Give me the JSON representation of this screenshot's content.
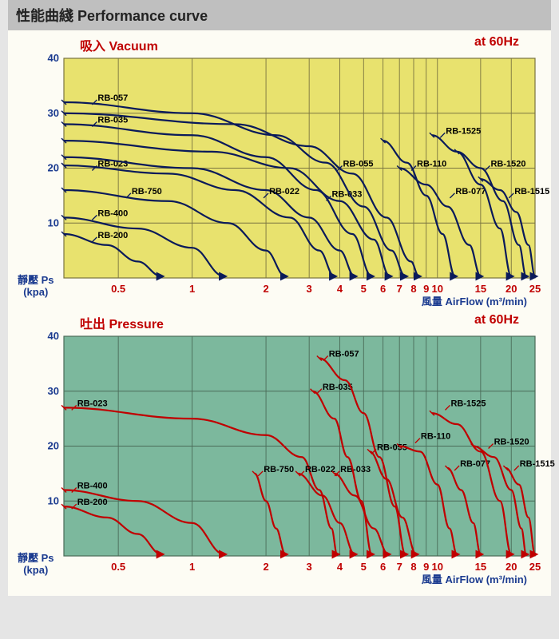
{
  "header": "性能曲綫 Performance curve",
  "chart_vacuum": {
    "title_left": "吸入 Vacuum",
    "title_right": "at 60Hz",
    "background_color": "#e8e26e",
    "grid_color": "#7a7440",
    "curve_color": "#0a1a5a",
    "curve_width": 2.2,
    "y_axis": {
      "min": 0,
      "max": 40,
      "ticks": [
        10,
        20,
        30,
        40
      ]
    },
    "x_axis": {
      "scale": "log",
      "min": 0.3,
      "max": 25,
      "ticks": [
        0.5,
        1,
        2,
        3,
        4,
        5,
        6,
        7,
        8,
        9,
        10,
        15,
        20,
        25
      ]
    },
    "xlabel": "風量 AirFlow (m³/min)",
    "ylabel_top": "靜壓 Ps",
    "ylabel_bottom": "(kpa)",
    "curves": [
      {
        "label": "RB-200",
        "label_x": 0.4,
        "label_y": 7,
        "points": [
          [
            0.3,
            8
          ],
          [
            0.45,
            6
          ],
          [
            0.6,
            3
          ],
          [
            0.75,
            0.3
          ]
        ]
      },
      {
        "label": "RB-400",
        "label_x": 0.4,
        "label_y": 11,
        "points": [
          [
            0.3,
            11
          ],
          [
            0.6,
            9
          ],
          [
            1.0,
            5.5
          ],
          [
            1.35,
            0.3
          ]
        ]
      },
      {
        "label": "RB-750",
        "label_x": 0.55,
        "label_y": 15,
        "points": [
          [
            0.3,
            16
          ],
          [
            0.8,
            14
          ],
          [
            1.4,
            10
          ],
          [
            2.0,
            5
          ],
          [
            2.4,
            0.3
          ]
        ]
      },
      {
        "label": "RB-023",
        "label_x": 0.4,
        "label_y": 20,
        "points": [
          [
            0.3,
            20.5
          ],
          [
            0.8,
            19
          ],
          [
            1.5,
            16
          ],
          [
            2.5,
            11
          ],
          [
            3.3,
            5
          ],
          [
            3.8,
            0.3
          ]
        ]
      },
      {
        "label": "RB-022",
        "label_x": 2.0,
        "label_y": 15,
        "points": [
          [
            0.3,
            22
          ],
          [
            1.0,
            20
          ],
          [
            2.0,
            16
          ],
          [
            3.0,
            11
          ],
          [
            4.0,
            5
          ],
          [
            4.6,
            0.3
          ]
        ]
      },
      {
        "label": "RB-035",
        "label_x": 0.4,
        "label_y": 28,
        "points": [
          [
            0.3,
            28
          ],
          [
            1.0,
            26
          ],
          [
            2.0,
            22
          ],
          [
            3.2,
            16
          ],
          [
            4.5,
            8
          ],
          [
            5.4,
            0.3
          ]
        ]
      },
      {
        "label": "RB-033",
        "label_x": 3.6,
        "label_y": 14.5,
        "points": [
          [
            0.3,
            25
          ],
          [
            1.2,
            23
          ],
          [
            2.5,
            20
          ],
          [
            4.0,
            14
          ],
          [
            5.5,
            7
          ],
          [
            6.4,
            0.3
          ]
        ]
      },
      {
        "label": "RB-057",
        "label_x": 0.4,
        "label_y": 32,
        "points": [
          [
            0.3,
            32
          ],
          [
            1.0,
            30
          ],
          [
            2.2,
            26
          ],
          [
            3.5,
            21
          ],
          [
            5.0,
            13
          ],
          [
            6.5,
            5
          ],
          [
            7.4,
            0.3
          ]
        ]
      },
      {
        "label": "RB-055",
        "label_x": 4.0,
        "label_y": 20,
        "points": [
          [
            0.3,
            30
          ],
          [
            1.5,
            28
          ],
          [
            3.0,
            24
          ],
          [
            4.5,
            19
          ],
          [
            6.2,
            11
          ],
          [
            7.8,
            3
          ],
          [
            8.4,
            0.3
          ]
        ]
      },
      {
        "label": "RB-110",
        "label_x": 8.0,
        "label_y": 20,
        "points": [
          [
            6.0,
            25
          ],
          [
            7.5,
            21
          ],
          [
            9.0,
            15
          ],
          [
            10.5,
            8
          ],
          [
            11.8,
            0.3
          ]
        ]
      },
      {
        "label": "RB-077",
        "label_x": 11.5,
        "label_y": 15,
        "points": [
          [
            7.0,
            20
          ],
          [
            9.0,
            17
          ],
          [
            11.0,
            13
          ],
          [
            13.5,
            6
          ],
          [
            15.0,
            0.3
          ]
        ]
      },
      {
        "label": "RB-1525",
        "label_x": 10.5,
        "label_y": 26,
        "points": [
          [
            9.5,
            26
          ],
          [
            12.0,
            23
          ],
          [
            15.0,
            17
          ],
          [
            18.0,
            9
          ],
          [
            20.0,
            0.3
          ]
        ]
      },
      {
        "label": "RB-1520",
        "label_x": 16.0,
        "label_y": 20,
        "points": [
          [
            12.0,
            23
          ],
          [
            15.0,
            20
          ],
          [
            18.5,
            14
          ],
          [
            21.5,
            6
          ],
          [
            23.0,
            0.3
          ]
        ]
      },
      {
        "label": "RB-1515",
        "label_x": 20.0,
        "label_y": 15,
        "points": [
          [
            15.0,
            18
          ],
          [
            18.0,
            16
          ],
          [
            21.0,
            12
          ],
          [
            23.5,
            6
          ],
          [
            25.0,
            0.3
          ]
        ]
      }
    ]
  },
  "chart_pressure": {
    "title_left": "吐出 Pressure",
    "title_right": "at 60Hz",
    "background_color": "#7cb89d",
    "grid_color": "#4a6b58",
    "curve_color": "#c00000",
    "curve_width": 2.2,
    "y_axis": {
      "min": 0,
      "max": 40,
      "ticks": [
        10,
        20,
        30,
        40
      ]
    },
    "x_axis": {
      "scale": "log",
      "min": 0.3,
      "max": 25,
      "ticks": [
        0.5,
        1,
        2,
        3,
        4,
        5,
        6,
        7,
        8,
        9,
        10,
        15,
        20,
        25
      ]
    },
    "xlabel": "風量 AirFlow (m³/min)",
    "ylabel_top": "靜壓 Ps",
    "ylabel_bottom": "(kpa)",
    "curves": [
      {
        "label": "RB-200",
        "label_x": 0.33,
        "label_y": 9,
        "points": [
          [
            0.3,
            9
          ],
          [
            0.45,
            7
          ],
          [
            0.6,
            4
          ],
          [
            0.75,
            0.3
          ]
        ]
      },
      {
        "label": "RB-400",
        "label_x": 0.33,
        "label_y": 12,
        "points": [
          [
            0.3,
            12
          ],
          [
            0.6,
            10
          ],
          [
            1.0,
            6
          ],
          [
            1.35,
            0.3
          ]
        ]
      },
      {
        "label": "RB-750",
        "label_x": 1.9,
        "label_y": 15,
        "points": [
          [
            1.8,
            15
          ],
          [
            2.0,
            10
          ],
          [
            2.2,
            5
          ],
          [
            2.4,
            0.3
          ]
        ]
      },
      {
        "label": "RB-023",
        "label_x": 0.33,
        "label_y": 27,
        "points": [
          [
            0.3,
            27
          ],
          [
            1.0,
            25
          ],
          [
            2.0,
            22
          ],
          [
            2.8,
            18
          ],
          [
            3.3,
            12
          ],
          [
            3.7,
            5
          ],
          [
            3.9,
            0.3
          ]
        ]
      },
      {
        "label": "RB-022",
        "label_x": 2.8,
        "label_y": 15,
        "points": [
          [
            2.7,
            15
          ],
          [
            3.4,
            11
          ],
          [
            4.0,
            6
          ],
          [
            4.6,
            0.3
          ]
        ]
      },
      {
        "label": "RB-033",
        "label_x": 3.9,
        "label_y": 15,
        "points": [
          [
            3.8,
            15
          ],
          [
            4.6,
            11
          ],
          [
            5.5,
            5
          ],
          [
            6.3,
            0.3
          ]
        ]
      },
      {
        "label": "RB-035",
        "label_x": 3.3,
        "label_y": 30,
        "points": [
          [
            3.1,
            30
          ],
          [
            3.8,
            25
          ],
          [
            4.3,
            18
          ],
          [
            4.9,
            10
          ],
          [
            5.4,
            0.3
          ]
        ]
      },
      {
        "label": "RB-055",
        "label_x": 5.5,
        "label_y": 19,
        "points": [
          [
            5.3,
            19
          ],
          [
            6.2,
            14
          ],
          [
            7.2,
            7
          ],
          [
            8.2,
            0.3
          ]
        ]
      },
      {
        "label": "RB-057",
        "label_x": 3.5,
        "label_y": 36,
        "points": [
          [
            3.3,
            36
          ],
          [
            4.2,
            32
          ],
          [
            5.0,
            26
          ],
          [
            5.8,
            18
          ],
          [
            6.7,
            9
          ],
          [
            7.4,
            0.3
          ]
        ]
      },
      {
        "label": "RB-110",
        "label_x": 8.3,
        "label_y": 21,
        "points": [
          [
            7.0,
            20
          ],
          [
            8.5,
            19
          ],
          [
            10.0,
            13
          ],
          [
            11.2,
            5
          ],
          [
            12.0,
            0.3
          ]
        ]
      },
      {
        "label": "RB-077",
        "label_x": 12.0,
        "label_y": 16,
        "points": [
          [
            11.0,
            16
          ],
          [
            12.5,
            12
          ],
          [
            14.0,
            6
          ],
          [
            15.0,
            0.3
          ]
        ]
      },
      {
        "label": "RB-1525",
        "label_x": 11.0,
        "label_y": 27,
        "points": [
          [
            9.5,
            26
          ],
          [
            12.0,
            24
          ],
          [
            15.0,
            19
          ],
          [
            18.0,
            10
          ],
          [
            20.0,
            0.3
          ]
        ]
      },
      {
        "label": "RB-1520",
        "label_x": 16.5,
        "label_y": 20,
        "points": [
          [
            14.0,
            20
          ],
          [
            17.0,
            18
          ],
          [
            20.0,
            12
          ],
          [
            22.0,
            5
          ],
          [
            23.0,
            0.3
          ]
        ]
      },
      {
        "label": "RB-1515",
        "label_x": 21.0,
        "label_y": 16,
        "points": [
          [
            19.0,
            16
          ],
          [
            21.5,
            13
          ],
          [
            23.5,
            7
          ],
          [
            25.0,
            0.3
          ]
        ]
      }
    ]
  }
}
